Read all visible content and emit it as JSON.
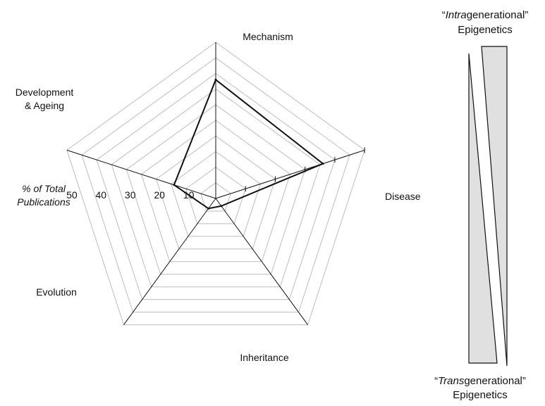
{
  "chart_data": {
    "type": "radar",
    "axes": [
      "Mechanism",
      "Disease",
      "Inheritance",
      "Evolution",
      "Development & Ageing"
    ],
    "axis_label_lines": {
      "development": [
        "Development",
        "& Ageing"
      ]
    },
    "values": [
      38,
      36,
      3,
      4,
      14
    ],
    "rlim": [
      0,
      50
    ],
    "rticks": [
      10,
      20,
      30,
      40,
      50
    ],
    "rtick_labels": [
      "10",
      "20",
      "30",
      "40",
      "50"
    ],
    "ylabel_lines": [
      "% of Total",
      "Publications"
    ],
    "grid": true
  },
  "side_panel": {
    "top_label": {
      "open_quote": "“",
      "italic": "Intra",
      "rest": "generational”",
      "line2": "Epigenetics"
    },
    "bottom_label": {
      "open_quote": "“",
      "italic": "Trans",
      "rest": "generational”",
      "line2": "Epigenetics"
    },
    "wedge_color": "#e0e0e0"
  },
  "colors": {
    "grid": "#bdbdbd",
    "axis": "#111111",
    "series": "#111111"
  }
}
